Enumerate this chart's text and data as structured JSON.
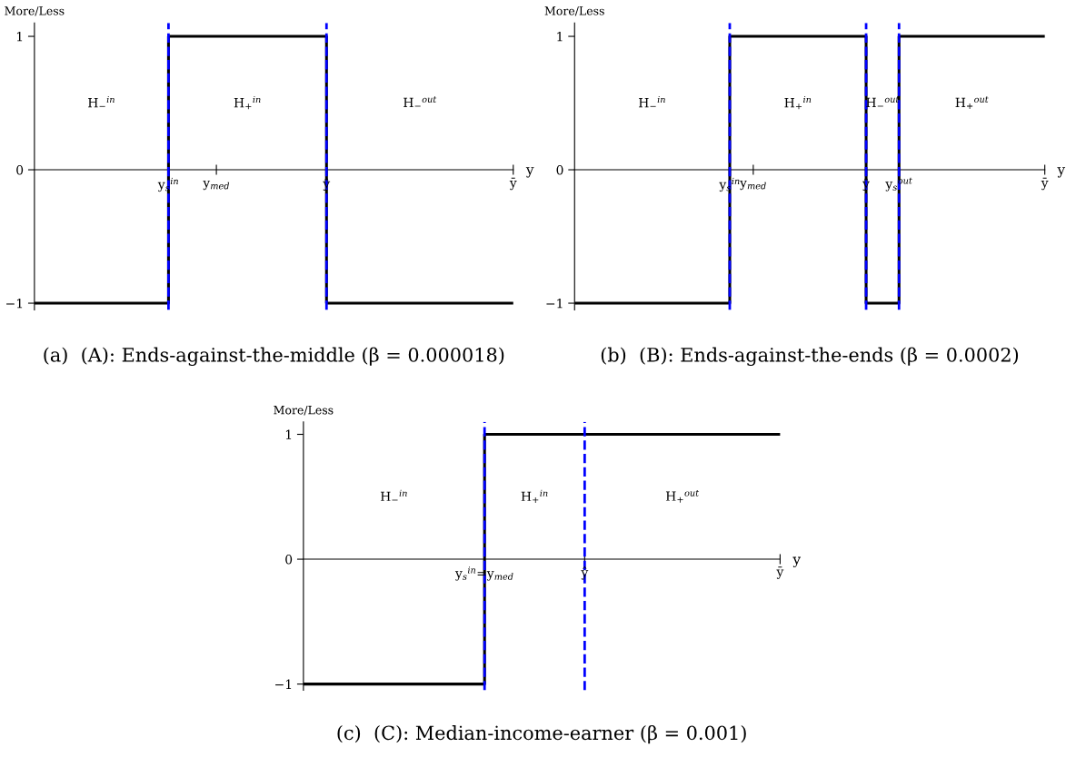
{
  "chart_data": [
    {
      "type": "step",
      "title": "(a)  (A): Ends-against-the-middle (β = 0.000018)",
      "xlabel": "y",
      "ylabel": "More/Less",
      "grid": false,
      "legend": false,
      "categories": [
        null,
        null,
        null,
        null,
        null,
        null,
        null,
        null,
        null,
        null,
        null,
        null,
        null,
        null,
        null,
        null,
        null,
        null,
        null,
        null,
        null,
        null,
        null,
        null,
        null,
        null,
        null,
        null,
        "y$_{s}$$^{in}$",
        null,
        null,
        null,
        null,
        null,
        null,
        null,
        null,
        null,
        "y$_{med}$",
        null,
        null,
        null,
        null,
        null,
        null,
        null,
        null,
        null,
        null,
        null,
        null,
        null,
        null,
        null,
        null,
        null,
        null,
        null,
        null,
        null,
        null,
        "ŷ",
        null,
        null,
        null,
        null,
        null,
        null,
        null,
        null,
        null,
        null,
        null,
        null,
        null,
        null,
        null,
        null,
        null,
        null,
        null,
        null,
        null,
        null,
        null,
        null,
        null,
        null,
        null,
        null,
        null,
        null,
        null,
        null,
        null,
        null,
        null,
        null,
        null,
        null,
        "ȳ"
      ],
      "series": [
        {
          "color": "#000000",
          "values": [
            -1,
            -1,
            -1,
            -1,
            -1,
            -1,
            -1,
            -1,
            -1,
            -1,
            -1,
            -1,
            -1,
            -1,
            -1,
            -1,
            -1,
            -1,
            -1,
            -1,
            -1,
            -1,
            -1,
            -1,
            -1,
            -1,
            -1,
            -1,
            1,
            1,
            1,
            1,
            1,
            1,
            1,
            1,
            1,
            1,
            1,
            1,
            1,
            1,
            1,
            1,
            1,
            1,
            1,
            1,
            1,
            1,
            1,
            1,
            1,
            1,
            1,
            1,
            1,
            1,
            1,
            1,
            1,
            -1,
            -1,
            -1,
            -1,
            -1,
            -1,
            -1,
            -1,
            -1,
            -1,
            -1,
            -1,
            -1,
            -1,
            -1,
            -1,
            -1,
            -1,
            -1,
            -1,
            -1,
            -1,
            -1,
            -1,
            -1,
            -1,
            -1,
            -1,
            -1,
            -1,
            -1,
            -1,
            -1,
            -1,
            -1,
            -1,
            -1,
            -1,
            -1,
            -1
          ]
        }
      ],
      "ylim": [
        -1.05,
        1.1
      ],
      "yticks": [
        -1,
        0,
        1
      ],
      "ref_lines": [
        {
          "axis": "x",
          "value": "y$_{s}$$^{in}$",
          "color": "#0000ff",
          "line_style": "dashed"
        },
        {
          "axis": "x",
          "value": "ŷ",
          "color": "#0000ff",
          "line_style": "dashed"
        }
      ],
      "annotations": [
        "H$_{−}$$^{in}$",
        "H$_{+}$$^{in}$",
        "H$_{−}$$^{out}$"
      ]
    },
    {
      "type": "step",
      "title": "(b)  (B): Ends-against-the-ends (β = 0.0002)",
      "xlabel": "y",
      "ylabel": "More/Less",
      "categories": [
        null,
        null,
        null,
        null,
        null,
        null,
        null,
        null,
        null,
        null,
        null,
        null,
        null,
        null,
        null,
        null,
        null,
        null,
        null,
        null,
        null,
        null,
        null,
        null,
        null,
        null,
        null,
        null,
        null,
        null,
        null,
        null,
        null,
        "y$_{s}$$^{in}$",
        null,
        null,
        null,
        null,
        "y$_{med}$",
        null,
        null,
        null,
        null,
        null,
        null,
        null,
        null,
        null,
        null,
        null,
        null,
        null,
        null,
        null,
        null,
        null,
        null,
        null,
        null,
        null,
        null,
        null,
        "ŷ",
        null,
        null,
        null,
        null,
        null,
        null,
        "y$_{s}$$^{out}$",
        null,
        null,
        null,
        null,
        null,
        null,
        null,
        null,
        null,
        null,
        null,
        null,
        null,
        null,
        null,
        null,
        null,
        null,
        null,
        null,
        null,
        null,
        null,
        null,
        null,
        null,
        null,
        null,
        null,
        null,
        "ȳ"
      ],
      "series": [
        {
          "color": "#000000",
          "values": [
            -1,
            -1,
            -1,
            -1,
            -1,
            -1,
            -1,
            -1,
            -1,
            -1,
            -1,
            -1,
            -1,
            -1,
            -1,
            -1,
            -1,
            -1,
            -1,
            -1,
            -1,
            -1,
            -1,
            -1,
            -1,
            -1,
            -1,
            -1,
            -1,
            -1,
            -1,
            -1,
            -1,
            1,
            1,
            1,
            1,
            1,
            1,
            1,
            1,
            1,
            1,
            1,
            1,
            1,
            1,
            1,
            1,
            1,
            1,
            1,
            1,
            1,
            1,
            1,
            1,
            1,
            1,
            1,
            1,
            1,
            -1,
            -1,
            -1,
            -1,
            -1,
            -1,
            -1,
            1,
            1,
            1,
            1,
            1,
            1,
            1,
            1,
            1,
            1,
            1,
            1,
            1,
            1,
            1,
            1,
            1,
            1,
            1,
            1,
            1,
            1,
            1,
            1,
            1,
            1,
            1,
            1,
            1,
            1,
            1,
            1
          ]
        }
      ],
      "ylim": [
        -1.05,
        1.1
      ],
      "yticks": [
        -1,
        0,
        1
      ],
      "ref_lines": [
        {
          "axis": "x",
          "value": "y$_{s}$$^{in}$",
          "color": "#0000ff",
          "line_style": "dashed"
        },
        {
          "axis": "x",
          "value": "ŷ",
          "color": "#0000ff",
          "line_style": "dashed"
        },
        {
          "axis": "x",
          "value": "y$_{s}$$^{out}$",
          "color": "#0000ff",
          "line_style": "dashed"
        }
      ],
      "annotations": [
        "H$_{−}$$^{in}$",
        "H$_{+}$$^{in}$",
        "H$_{−}$$^{out}$",
        "H$_{+}$$^{out}$"
      ]
    },
    {
      "type": "step",
      "title": "(c)  (C): Median-income-earner (β = 0.001)",
      "xlabel": "y",
      "ylabel": "More/Less",
      "categories": [
        null,
        null,
        null,
        null,
        null,
        null,
        null,
        null,
        null,
        null,
        null,
        null,
        null,
        null,
        null,
        null,
        null,
        null,
        null,
        null,
        null,
        null,
        null,
        null,
        null,
        null,
        null,
        null,
        null,
        null,
        null,
        null,
        null,
        null,
        null,
        null,
        null,
        null,
        "y$_{s}$$^{in}$=y$_{med}$",
        null,
        null,
        null,
        null,
        null,
        null,
        null,
        null,
        null,
        null,
        null,
        null,
        null,
        null,
        null,
        null,
        null,
        null,
        null,
        null,
        "ŷ",
        null,
        null,
        null,
        null,
        null,
        null,
        null,
        null,
        null,
        null,
        null,
        null,
        null,
        null,
        null,
        null,
        null,
        null,
        null,
        null,
        null,
        null,
        null,
        null,
        null,
        null,
        null,
        null,
        null,
        null,
        null,
        null,
        null,
        null,
        null,
        null,
        null,
        null,
        null,
        null,
        "ȳ"
      ],
      "series": [
        {
          "color": "#000000",
          "values": [
            -1,
            -1,
            -1,
            -1,
            -1,
            -1,
            -1,
            -1,
            -1,
            -1,
            -1,
            -1,
            -1,
            -1,
            -1,
            -1,
            -1,
            -1,
            -1,
            -1,
            -1,
            -1,
            -1,
            -1,
            -1,
            -1,
            -1,
            -1,
            -1,
            -1,
            -1,
            -1,
            -1,
            -1,
            -1,
            -1,
            -1,
            -1,
            1,
            1,
            1,
            1,
            1,
            1,
            1,
            1,
            1,
            1,
            1,
            1,
            1,
            1,
            1,
            1,
            1,
            1,
            1,
            1,
            1,
            1,
            1,
            1,
            1,
            1,
            1,
            1,
            1,
            1,
            1,
            1,
            1,
            1,
            1,
            1,
            1,
            1,
            1,
            1,
            1,
            1,
            1,
            1,
            1,
            1,
            1,
            1,
            1,
            1,
            1,
            1,
            1,
            1,
            1,
            1,
            1,
            1,
            1,
            1,
            1,
            1,
            1
          ]
        }
      ],
      "ylim": [
        -1.05,
        1.1
      ],
      "yticks": [
        -1,
        0,
        1
      ],
      "ref_lines": [
        {
          "axis": "x",
          "value": "y$_{s}$$^{in}$=y$_{med}$",
          "color": "#0000ff",
          "line_style": "dashed"
        },
        {
          "axis": "x",
          "value": "ŷ",
          "color": "#0000ff",
          "line_style": "dashed"
        }
      ],
      "annotations": [
        "H$_{−}$$^{in}$",
        "H$_{+}$$^{in}$",
        "H$_{+}$$^{out}$"
      ]
    }
  ]
}
